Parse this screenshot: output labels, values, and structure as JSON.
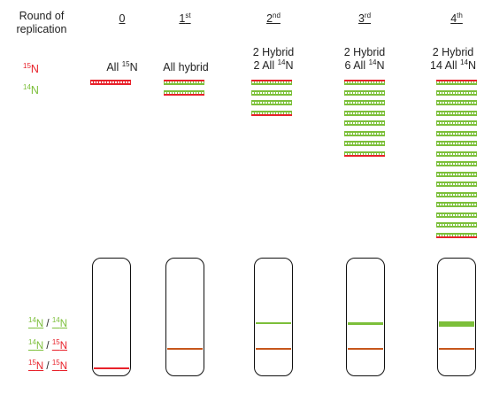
{
  "header": {
    "line1": "Round of",
    "line2": "replication"
  },
  "rounds": [
    {
      "label": "0",
      "sup": "",
      "desc1": "",
      "desc2": "All ",
      "desc2_sup": "15",
      "desc2_tail": "N"
    },
    {
      "label": "1",
      "sup": "st",
      "desc1": "",
      "desc2": "All hybrid",
      "desc2_sup": "",
      "desc2_tail": ""
    },
    {
      "label": "2",
      "sup": "nd",
      "desc1": "2 Hybrid",
      "desc2": "2 All ",
      "desc2_sup": "14",
      "desc2_tail": "N"
    },
    {
      "label": "3",
      "sup": "rd",
      "desc1": "2 Hybrid",
      "desc2": "6 All ",
      "desc2_sup": "14",
      "desc2_tail": "N"
    },
    {
      "label": "4",
      "sup": "th",
      "desc1": "2 Hybrid",
      "desc2": "14 All ",
      "desc2_sup": "14",
      "desc2_tail": "N"
    }
  ],
  "isotope_key": [
    {
      "sup": "15",
      "base": "N",
      "color": "#e8212a"
    },
    {
      "sup": "14",
      "base": "N",
      "color": "#7cbf3a"
    }
  ],
  "tube_legend": [
    {
      "a_sup": "14",
      "a": "N",
      "sep": " / ",
      "b_sup": "14",
      "b": "N",
      "a_color": "#7cbf3a",
      "b_color": "#7cbf3a"
    },
    {
      "a_sup": "14",
      "a": "N",
      "sep": " / ",
      "b_sup": "15",
      "b": "N",
      "a_color": "#7cbf3a",
      "b_color": "#e8212a"
    },
    {
      "a_sup": "15",
      "a": "N",
      "sep": " / ",
      "b_sup": "15",
      "b": "N",
      "a_color": "#e8212a",
      "b_color": "#e8212a"
    }
  ],
  "colors": {
    "heavy": "#e8212a",
    "light": "#7cbf3a",
    "hybrid_band": "#c7561c",
    "tube_border": "#111111"
  }
}
